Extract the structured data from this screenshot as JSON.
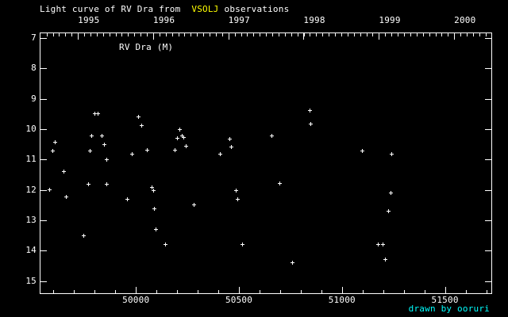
{
  "title": {
    "prefix": "Light curve of RV Dra from",
    "highlight": "VSOLJ",
    "suffix": "observations"
  },
  "plot_label": "RV Dra (M)",
  "credit": "drawn by ooruri",
  "colors": {
    "background": "#000000",
    "foreground": "#ffffff",
    "highlight_yellow": "#ffff00",
    "credit_cyan": "#00ffff"
  },
  "chart_data": {
    "type": "scatter",
    "marker": "plus",
    "title": "Light curve of RV Dra from VSOLJ observations",
    "series_label": "RV Dra (M)",
    "grid": false,
    "legend": false,
    "x_axis": {
      "unit": "JD - 2400000",
      "range": [
        49533,
        51725
      ],
      "bottom_major_ticks": [
        50000,
        50500,
        51000,
        51500
      ],
      "bottom_minor_tick_step": 100,
      "top_year_ticks": [
        {
          "year": "1995",
          "jd": 49718.5
        },
        {
          "year": "1996",
          "jd": 50083.5
        },
        {
          "year": "1997",
          "jd": 50448.5
        },
        {
          "year": "1998",
          "jd": 50813.5
        },
        {
          "year": "1999",
          "jd": 51179.5
        },
        {
          "year": "2000",
          "jd": 51544.5
        }
      ],
      "top_minor_tick_step_days": 30.4375
    },
    "y_axis": {
      "unit": "magnitude",
      "inverted": true,
      "range_top_to_bottom": [
        6.82,
        15.4
      ],
      "ticks": [
        7,
        8,
        9,
        10,
        11,
        12,
        13,
        14,
        15
      ]
    },
    "points": [
      [
        49578,
        11.99
      ],
      [
        49594,
        10.7
      ],
      [
        49606,
        10.42
      ],
      [
        49650,
        11.39
      ],
      [
        49660,
        12.21
      ],
      [
        49746,
        13.5
      ],
      [
        49769,
        11.79
      ],
      [
        49775,
        10.7
      ],
      [
        49785,
        10.21
      ],
      [
        49799,
        9.48
      ],
      [
        49815,
        9.48
      ],
      [
        49832,
        10.21
      ],
      [
        49845,
        10.49
      ],
      [
        49856,
        11.0
      ],
      [
        49858,
        11.79
      ],
      [
        49958,
        12.29
      ],
      [
        49981,
        10.8
      ],
      [
        50012,
        9.59
      ],
      [
        50027,
        9.87
      ],
      [
        50053,
        10.68
      ],
      [
        50077,
        11.9
      ],
      [
        50084,
        12.0
      ],
      [
        50087,
        12.6
      ],
      [
        50096,
        13.28
      ],
      [
        50141,
        13.78
      ],
      [
        50187,
        10.69
      ],
      [
        50198,
        10.29
      ],
      [
        50212,
        9.99
      ],
      [
        50222,
        10.2
      ],
      [
        50229,
        10.27
      ],
      [
        50242,
        10.56
      ],
      [
        50282,
        12.49
      ],
      [
        50406,
        10.8
      ],
      [
        50455,
        10.31
      ],
      [
        50462,
        10.58
      ],
      [
        50486,
        12.0
      ],
      [
        50494,
        12.3
      ],
      [
        50515,
        13.79
      ],
      [
        50659,
        10.2
      ],
      [
        50698,
        11.78
      ],
      [
        50758,
        14.39
      ],
      [
        50844,
        9.37
      ],
      [
        50847,
        9.82
      ],
      [
        51097,
        10.7
      ],
      [
        51174,
        13.79
      ],
      [
        51196,
        13.79
      ],
      [
        51207,
        14.28
      ],
      [
        51226,
        12.69
      ],
      [
        51235,
        12.1
      ],
      [
        51241,
        10.8
      ]
    ]
  }
}
